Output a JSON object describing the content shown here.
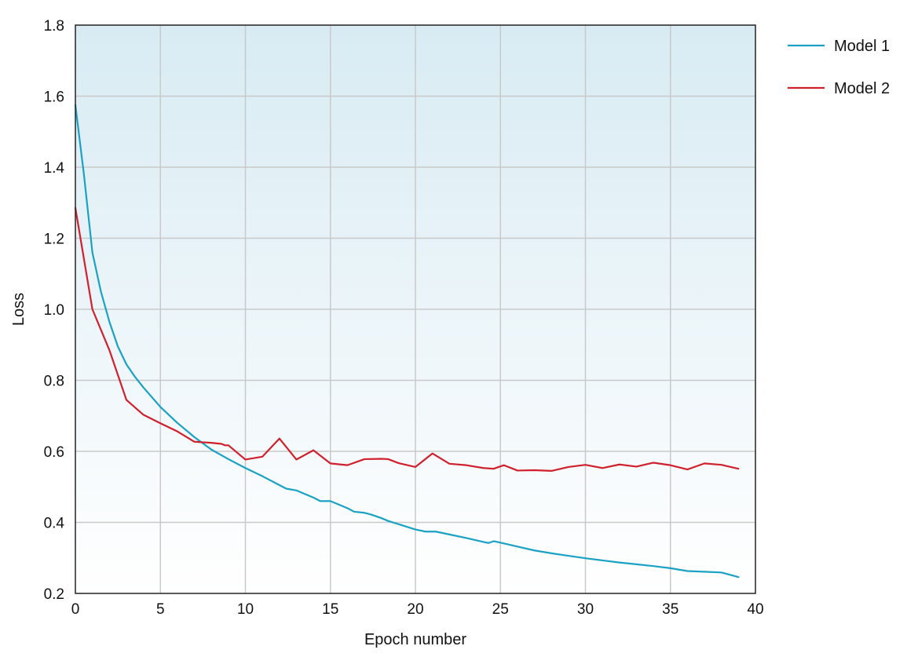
{
  "chart_data": {
    "type": "line",
    "title": "",
    "xlabel": "Epoch number",
    "ylabel": "Loss",
    "xlim": [
      0,
      40
    ],
    "ylim": [
      0.2,
      1.8
    ],
    "xticks": [
      0,
      5,
      10,
      15,
      20,
      25,
      30,
      35,
      40
    ],
    "yticks": [
      0.2,
      0.4,
      0.6,
      0.8,
      1.0,
      1.2,
      1.4,
      1.6,
      1.8
    ],
    "xtick_labels": [
      "0",
      "5",
      "10",
      "15",
      "20",
      "25",
      "30",
      "35",
      "40"
    ],
    "ytick_labels": [
      "0.2",
      "0.4",
      "0.6",
      "0.8",
      "1.0",
      "1.2",
      "1.4",
      "1.6",
      "1.8"
    ],
    "grid": true,
    "legend_position": "outside-top-right",
    "background_gradient": [
      "#d8ebf3",
      "#ffffff"
    ],
    "series": [
      {
        "name": "Model 1",
        "color": "#1aa1c4",
        "points": [
          [
            0,
            1.575
          ],
          [
            0.5,
            1.38
          ],
          [
            1,
            1.16
          ],
          [
            1.5,
            1.05
          ],
          [
            2,
            0.965
          ],
          [
            2.5,
            0.895
          ],
          [
            3,
            0.845
          ],
          [
            3.5,
            0.81
          ],
          [
            4,
            0.78
          ],
          [
            5,
            0.725
          ],
          [
            6,
            0.68
          ],
          [
            7,
            0.64
          ],
          [
            8,
            0.605
          ],
          [
            9,
            0.578
          ],
          [
            10,
            0.553
          ],
          [
            11,
            0.53
          ],
          [
            12,
            0.505
          ],
          [
            12.4,
            0.495
          ],
          [
            13,
            0.49
          ],
          [
            14,
            0.47
          ],
          [
            14.4,
            0.46
          ],
          [
            15,
            0.46
          ],
          [
            16,
            0.44
          ],
          [
            16.4,
            0.43
          ],
          [
            17,
            0.427
          ],
          [
            17.4,
            0.422
          ],
          [
            18,
            0.412
          ],
          [
            18.4,
            0.404
          ],
          [
            19,
            0.395
          ],
          [
            20,
            0.38
          ],
          [
            20.6,
            0.374
          ],
          [
            21.2,
            0.374
          ],
          [
            22,
            0.366
          ],
          [
            23,
            0.356
          ],
          [
            24,
            0.345
          ],
          [
            24.3,
            0.342
          ],
          [
            24.6,
            0.347
          ],
          [
            25,
            0.343
          ],
          [
            26,
            0.332
          ],
          [
            27,
            0.321
          ],
          [
            28,
            0.313
          ],
          [
            29,
            0.306
          ],
          [
            30,
            0.299
          ],
          [
            31,
            0.293
          ],
          [
            32,
            0.287
          ],
          [
            33,
            0.282
          ],
          [
            34,
            0.277
          ],
          [
            35,
            0.271
          ],
          [
            36,
            0.263
          ],
          [
            37,
            0.261
          ],
          [
            38,
            0.259
          ],
          [
            39,
            0.246
          ]
        ]
      },
      {
        "name": "Model 2",
        "color": "#d0202c",
        "points": [
          [
            0,
            1.285
          ],
          [
            1,
            1.0
          ],
          [
            2,
            0.885
          ],
          [
            3,
            0.745
          ],
          [
            4,
            0.703
          ],
          [
            5,
            0.679
          ],
          [
            6,
            0.656
          ],
          [
            7,
            0.627
          ],
          [
            8,
            0.624
          ],
          [
            8.6,
            0.621
          ],
          [
            8.8,
            0.617
          ],
          [
            9,
            0.617
          ],
          [
            10,
            0.577
          ],
          [
            11,
            0.585
          ],
          [
            12,
            0.636
          ],
          [
            13,
            0.577
          ],
          [
            14,
            0.603
          ],
          [
            15,
            0.566
          ],
          [
            16,
            0.561
          ],
          [
            17,
            0.578
          ],
          [
            18,
            0.579
          ],
          [
            18.4,
            0.578
          ],
          [
            19,
            0.567
          ],
          [
            20,
            0.556
          ],
          [
            21,
            0.594
          ],
          [
            22,
            0.565
          ],
          [
            23,
            0.561
          ],
          [
            24,
            0.553
          ],
          [
            24.6,
            0.551
          ],
          [
            25.2,
            0.561
          ],
          [
            26,
            0.546
          ],
          [
            27,
            0.547
          ],
          [
            28,
            0.545
          ],
          [
            29,
            0.556
          ],
          [
            30,
            0.562
          ],
          [
            31,
            0.553
          ],
          [
            32,
            0.563
          ],
          [
            33,
            0.557
          ],
          [
            34,
            0.568
          ],
          [
            35,
            0.561
          ],
          [
            36,
            0.549
          ],
          [
            37,
            0.566
          ],
          [
            38,
            0.562
          ],
          [
            39,
            0.551
          ]
        ]
      }
    ]
  }
}
